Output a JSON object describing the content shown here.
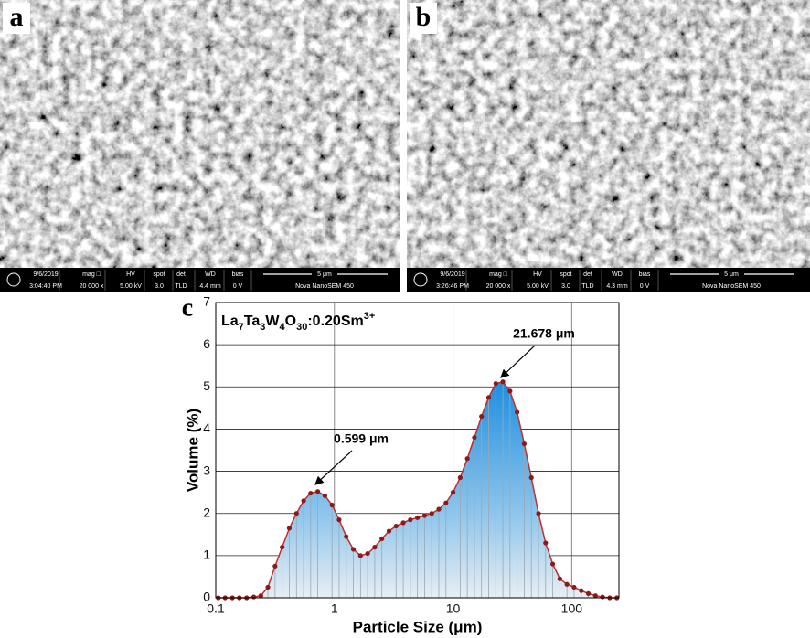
{
  "panels": [
    {
      "label": "a",
      "info": [
        [
          "9/6/2019",
          "3:04:40 PM"
        ],
        [
          "mag □",
          "20 000 x"
        ],
        [
          "HV",
          "5.00 kV"
        ],
        [
          "spot",
          "3.0"
        ],
        [
          "det",
          "TLD"
        ],
        [
          "WD",
          "4.4 mm"
        ],
        [
          "bias",
          "0 V"
        ],
        [
          "5 μm",
          "Nova NanoSEM 450"
        ]
      ]
    },
    {
      "label": "b",
      "info": [
        [
          "9/6/2019",
          "3:26:46 PM"
        ],
        [
          "mag □",
          "20 000 x"
        ],
        [
          "HV",
          "5.00 kV"
        ],
        [
          "spot",
          "3.0"
        ],
        [
          "det",
          "TLD"
        ],
        [
          "WD",
          "4.3 mm"
        ],
        [
          "bias",
          "0 V"
        ],
        [
          "5 μm",
          "Nova NanoSEM 450"
        ]
      ]
    }
  ],
  "chart_label": "c",
  "chart_data": {
    "type": "area",
    "sample_label": [
      "La",
      "7",
      "Ta",
      "3",
      "W",
      "4",
      "O",
      "30",
      ":0.20Sm",
      "3+"
    ],
    "x_label": "Particle Size (μm)",
    "y_label": "Volume (%)",
    "xscale": "log",
    "xlim": [
      0.1,
      250
    ],
    "ylim": [
      0,
      7
    ],
    "xticks": [
      0.1,
      1,
      10,
      100
    ],
    "yticks": [
      0,
      1,
      2,
      3,
      4,
      5,
      6,
      7
    ],
    "grid": true,
    "line_color": "#c0302a",
    "marker_color": "#8b1a1a",
    "fill_color": "#1e8fe0",
    "x": [
      0.105,
      0.12,
      0.138,
      0.158,
      0.182,
      0.209,
      0.24,
      0.275,
      0.316,
      0.363,
      0.417,
      0.479,
      0.55,
      0.631,
      0.724,
      0.832,
      0.955,
      1.096,
      1.259,
      1.445,
      1.66,
      1.905,
      2.188,
      2.512,
      2.884,
      3.311,
      3.802,
      4.365,
      5.012,
      5.754,
      6.607,
      7.586,
      8.71,
      10.0,
      11.482,
      13.183,
      15.136,
      17.378,
      19.953,
      22.909,
      26.303,
      30.2,
      34.674,
      39.811,
      45.709,
      52.481,
      60.256,
      69.183,
      79.433,
      91.201,
      104.713,
      120.226,
      138.038,
      158.489,
      181.97,
      208.93,
      239.88
    ],
    "values": [
      0,
      0,
      0,
      0,
      0,
      0.02,
      0.05,
      0.25,
      0.75,
      1.2,
      1.65,
      2.0,
      2.3,
      2.48,
      2.52,
      2.42,
      2.2,
      1.85,
      1.45,
      1.15,
      1.0,
      1.05,
      1.2,
      1.4,
      1.58,
      1.7,
      1.78,
      1.85,
      1.9,
      1.95,
      2.0,
      2.1,
      2.25,
      2.5,
      2.85,
      3.3,
      3.8,
      4.3,
      4.75,
      5.08,
      5.12,
      4.9,
      4.4,
      3.65,
      2.85,
      2.0,
      1.3,
      0.8,
      0.45,
      0.32,
      0.25,
      0.17,
      0.1,
      0.05,
      0.02,
      0,
      0
    ],
    "annotations": [
      "0.599 μm",
      "21.678 μm"
    ]
  }
}
